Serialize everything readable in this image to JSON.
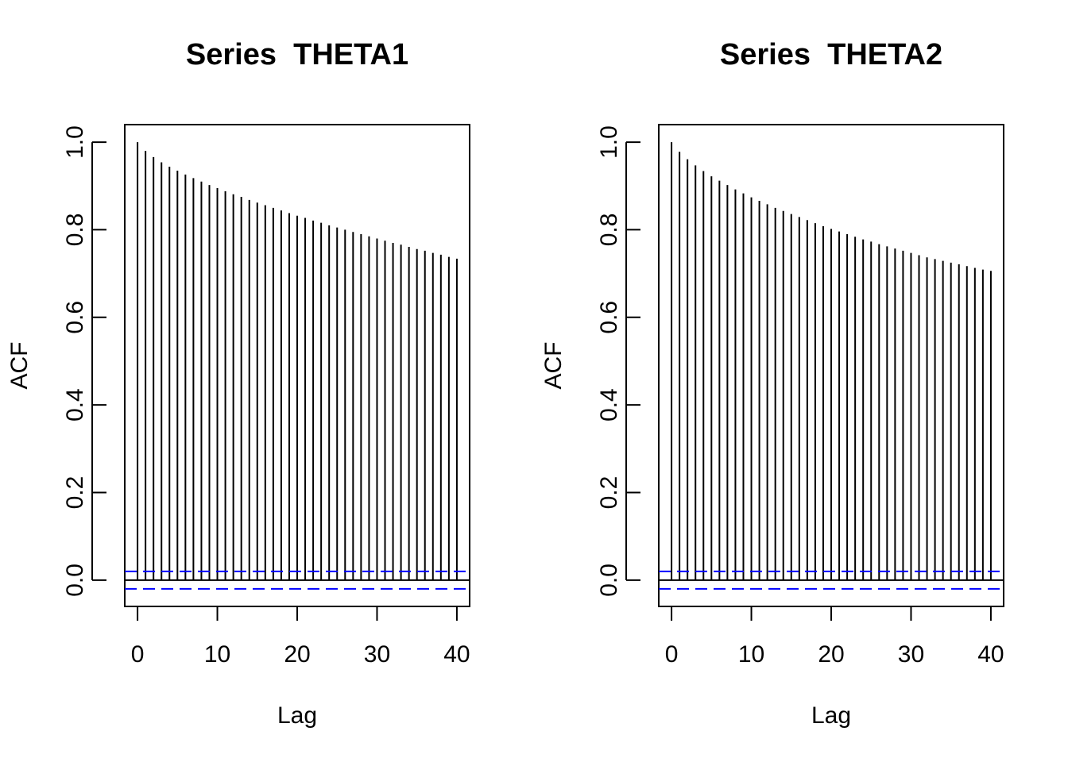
{
  "chart_data": [
    {
      "type": "bar",
      "title": "Series  THETA1",
      "xlabel": "Lag",
      "ylabel": "ACF",
      "xlim": [
        -1.6,
        41.6
      ],
      "ylim": [
        -0.06,
        1.04
      ],
      "xticks": [
        0,
        10,
        20,
        30,
        40
      ],
      "xtick_labels": [
        "0",
        "10",
        "20",
        "30",
        "40"
      ],
      "yticks": [
        0.0,
        0.2,
        0.4,
        0.6,
        0.8,
        1.0
      ],
      "ytick_labels": [
        "0.0",
        "0.2",
        "0.4",
        "0.6",
        "0.8",
        "1.0"
      ],
      "grid": false,
      "ci_bound": 0.02,
      "ci_color": "#0000ff",
      "spike_color": "#000000",
      "lags": [
        0,
        1,
        2,
        3,
        4,
        5,
        6,
        7,
        8,
        9,
        10,
        11,
        12,
        13,
        14,
        15,
        16,
        17,
        18,
        19,
        20,
        21,
        22,
        23,
        24,
        25,
        26,
        27,
        28,
        29,
        30,
        31,
        32,
        33,
        34,
        35,
        36,
        37,
        38,
        39,
        40
      ],
      "values": [
        1.0,
        0.98,
        0.966,
        0.954,
        0.944,
        0.935,
        0.926,
        0.918,
        0.91,
        0.902,
        0.895,
        0.888,
        0.881,
        0.875,
        0.868,
        0.862,
        0.856,
        0.85,
        0.844,
        0.838,
        0.832,
        0.827,
        0.821,
        0.816,
        0.81,
        0.805,
        0.8,
        0.795,
        0.79,
        0.785,
        0.78,
        0.775,
        0.77,
        0.766,
        0.761,
        0.756,
        0.752,
        0.747,
        0.743,
        0.738,
        0.734
      ]
    },
    {
      "type": "bar",
      "title": "Series  THETA2",
      "xlabel": "Lag",
      "ylabel": "ACF",
      "xlim": [
        -1.6,
        41.6
      ],
      "ylim": [
        -0.06,
        1.04
      ],
      "xticks": [
        0,
        10,
        20,
        30,
        40
      ],
      "xtick_labels": [
        "0",
        "10",
        "20",
        "30",
        "40"
      ],
      "yticks": [
        0.0,
        0.2,
        0.4,
        0.6,
        0.8,
        1.0
      ],
      "ytick_labels": [
        "0.0",
        "0.2",
        "0.4",
        "0.6",
        "0.8",
        "1.0"
      ],
      "grid": false,
      "ci_bound": 0.02,
      "ci_color": "#0000ff",
      "spike_color": "#000000",
      "lags": [
        0,
        1,
        2,
        3,
        4,
        5,
        6,
        7,
        8,
        9,
        10,
        11,
        12,
        13,
        14,
        15,
        16,
        17,
        18,
        19,
        20,
        21,
        22,
        23,
        24,
        25,
        26,
        27,
        28,
        29,
        30,
        31,
        32,
        33,
        34,
        35,
        36,
        37,
        38,
        39,
        40
      ],
      "values": [
        1.0,
        0.978,
        0.961,
        0.947,
        0.934,
        0.922,
        0.912,
        0.902,
        0.892,
        0.883,
        0.874,
        0.866,
        0.858,
        0.85,
        0.843,
        0.836,
        0.829,
        0.822,
        0.815,
        0.808,
        0.802,
        0.796,
        0.79,
        0.784,
        0.778,
        0.773,
        0.767,
        0.762,
        0.757,
        0.752,
        0.747,
        0.742,
        0.737,
        0.733,
        0.729,
        0.725,
        0.721,
        0.717,
        0.713,
        0.709,
        0.706
      ]
    }
  ]
}
